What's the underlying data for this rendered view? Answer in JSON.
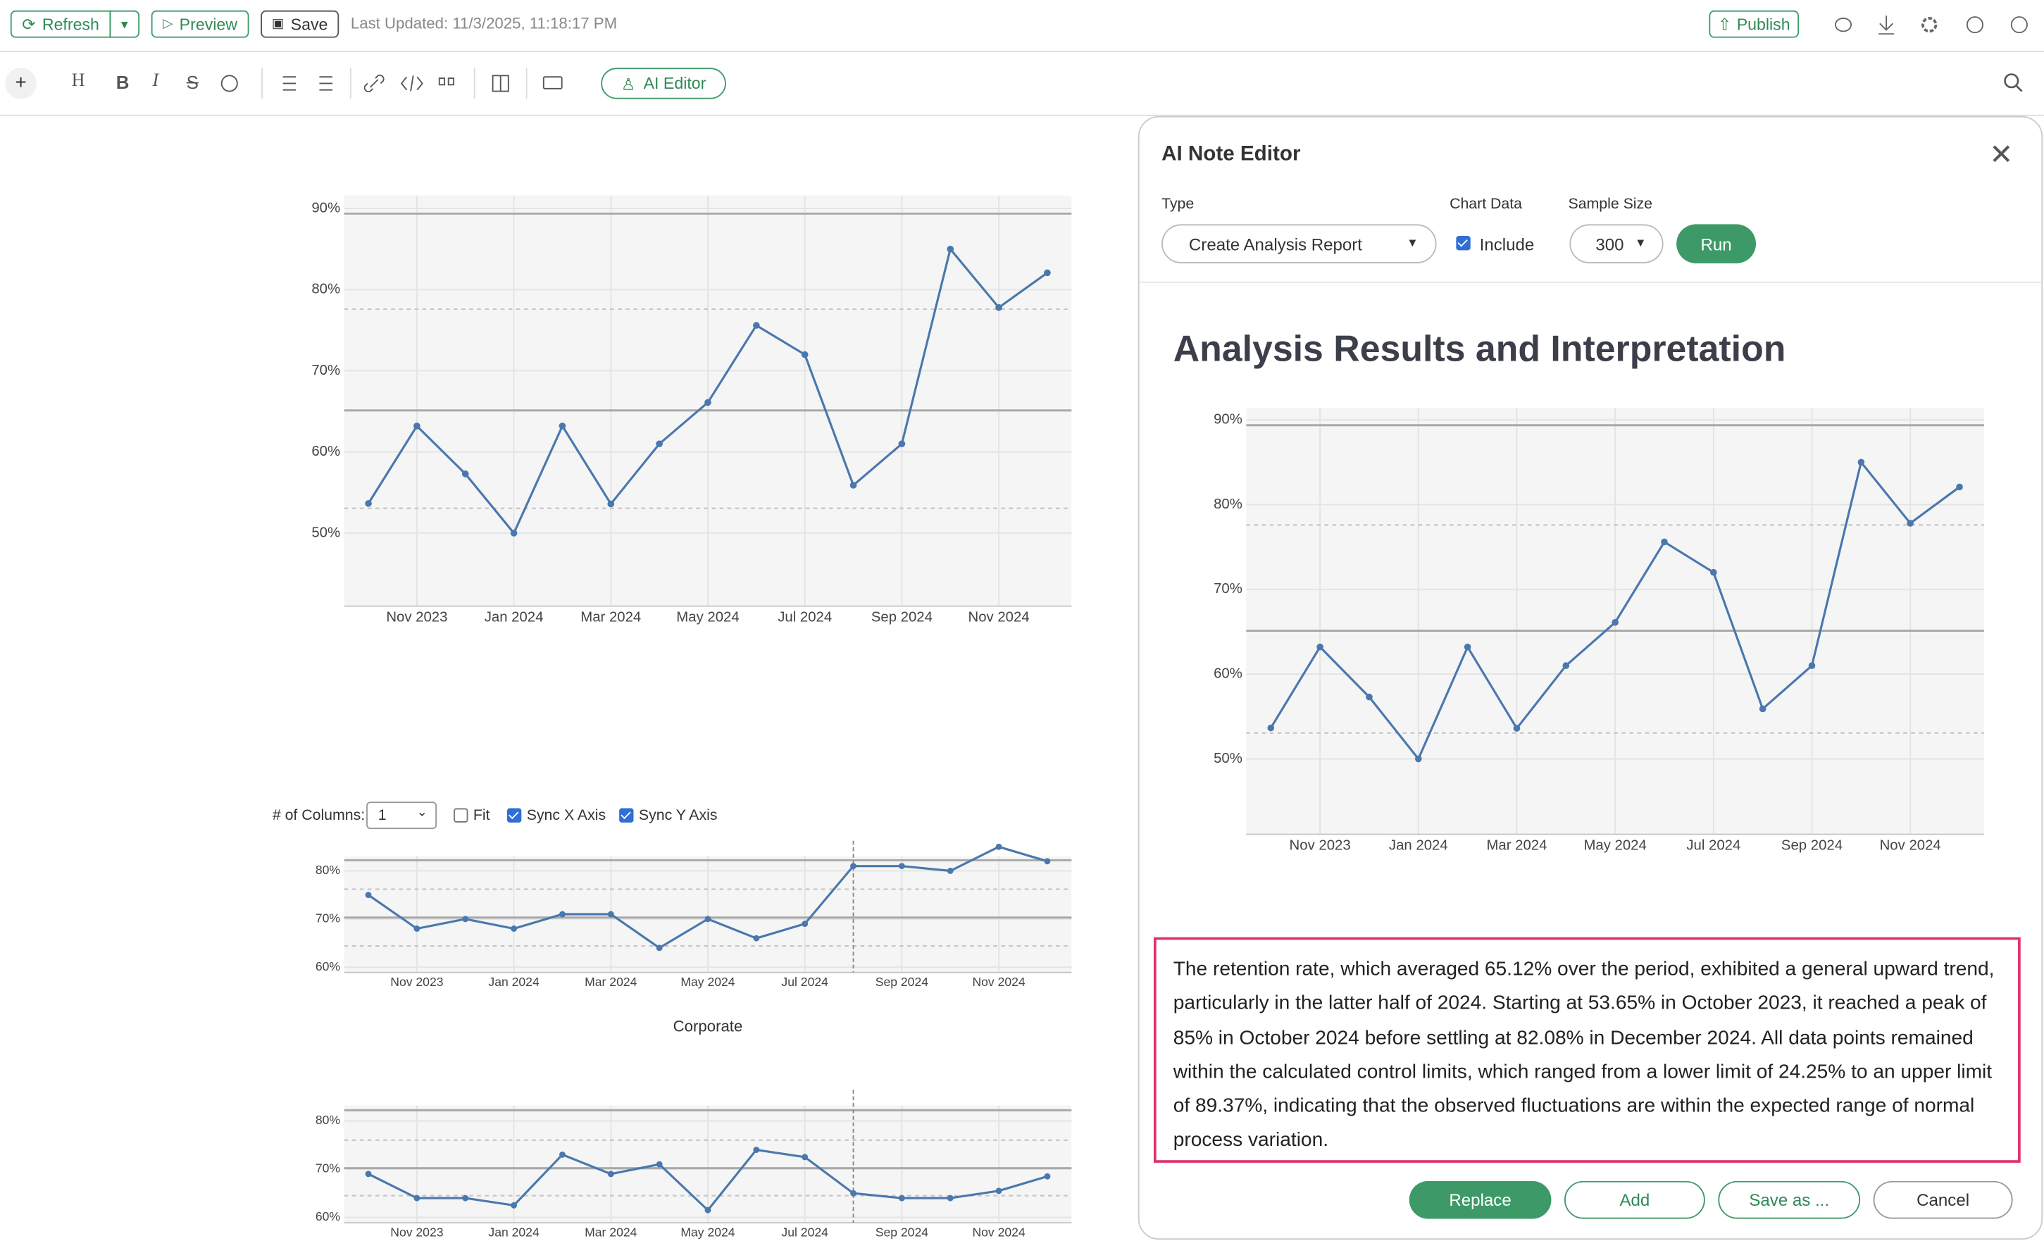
{
  "toolbar": {
    "refresh": "Refresh",
    "preview": "Preview",
    "save": "Save",
    "last_updated": "Last Updated: 11/3/2025, 11:18:17 PM",
    "publish": "Publish",
    "add": "+",
    "heading": "H",
    "bold": "B",
    "italic": "I",
    "strike": "S",
    "ai_editor": "AI Editor"
  },
  "facet_controls": {
    "columns_label": "# of Columns:",
    "columns_value": "1",
    "fit": "Fit",
    "sync_x": "Sync X Axis",
    "sync_y": "Sync Y Axis"
  },
  "chart_data": [
    {
      "type": "line",
      "categories": [
        null,
        "Nov 2023",
        null,
        "Jan 2024",
        null,
        "Mar 2024",
        null,
        "May 2024",
        null,
        "Jul 2024",
        null,
        "Sep 2024",
        null,
        "Nov 2024",
        null
      ],
      "series": [
        {
          "color": "#4a78ad",
          "values": [
            53.65,
            63.2,
            57.3,
            50.0,
            63.2,
            53.6,
            61.0,
            66.1,
            75.6,
            72.0,
            55.9,
            61.0,
            85,
            77.8,
            82.08
          ]
        }
      ],
      "ylim": [
        41,
        91.6
      ],
      "yticks": [
        {
          "value": 50,
          "label": "50%"
        },
        {
          "value": 60,
          "label": "60%"
        },
        {
          "value": 70,
          "label": "70%"
        },
        {
          "value": 80,
          "label": "80%"
        },
        {
          "value": 90,
          "label": "90%"
        }
      ],
      "reference_lines": [
        {
          "value": 89.37,
          "style": "solid"
        },
        {
          "value": 77.6,
          "style": "dashed"
        },
        {
          "value": 65.12,
          "style": "solid"
        },
        {
          "value": 53.05,
          "style": "dashed"
        }
      ],
      "grid": true
    },
    {
      "type": "line",
      "categories": [
        null,
        "Nov 2023",
        null,
        "Jan 2024",
        null,
        "Mar 2024",
        null,
        "May 2024",
        null,
        "Jul 2024",
        null,
        "Sep 2024",
        null,
        "Nov 2024",
        null
      ],
      "series": [
        {
          "color": "#4a78ad",
          "values": [
            75,
            68,
            70,
            68,
            71,
            71,
            64,
            70,
            66,
            69,
            81,
            81,
            80,
            85,
            82
          ]
        }
      ],
      "ylim": [
        58.9,
        83
      ],
      "yticks": [
        {
          "value": 60,
          "label": "60%"
        },
        {
          "value": 70,
          "label": "70%"
        },
        {
          "value": 80,
          "label": "80%"
        }
      ],
      "reference_lines": [
        {
          "value": 82.2,
          "style": "solid"
        },
        {
          "value": 76.2,
          "style": "dashed"
        },
        {
          "value": 70.3,
          "style": "solid"
        },
        {
          "value": 64.4,
          "style": "dashed"
        }
      ],
      "vline": 10,
      "grid": true
    },
    {
      "type": "line",
      "title": "Corporate",
      "categories": [
        null,
        "Nov 2023",
        null,
        "Jan 2024",
        null,
        "Mar 2024",
        null,
        "May 2024",
        null,
        "Jul 2024",
        null,
        "Sep 2024",
        null,
        "Nov 2024",
        null
      ],
      "series": [
        {
          "color": "#4a78ad",
          "values": [
            69,
            64,
            64,
            62.5,
            73,
            69,
            71,
            61.5,
            74,
            72.5,
            65,
            64,
            64,
            65.5,
            68.5
          ]
        }
      ],
      "ylim": [
        58.9,
        83.2
      ],
      "yticks": [
        {
          "value": 60,
          "label": "60%"
        },
        {
          "value": 70,
          "label": "70%"
        },
        {
          "value": 80,
          "label": "80%"
        }
      ],
      "reference_lines": [
        {
          "value": 82.2,
          "style": "solid"
        },
        {
          "value": 76,
          "style": "dashed"
        },
        {
          "value": 70.2,
          "style": "solid"
        },
        {
          "value": 64.5,
          "style": "dashed"
        }
      ],
      "vline": 10,
      "grid": true
    },
    {
      "type": "line",
      "categories": [
        null,
        "Nov 2023",
        null,
        "Jan 2024",
        null,
        "Mar 2024",
        null,
        "May 2024",
        null,
        "Jul 2024",
        null,
        "Sep 2024",
        null,
        "Nov 2024",
        null
      ],
      "series": [
        {
          "color": "#4a78ad",
          "values": [
            53.65,
            63.2,
            57.3,
            50.0,
            63.2,
            53.6,
            61.0,
            66.1,
            75.6,
            72.0,
            55.9,
            61.0,
            85,
            77.8,
            82.08
          ]
        }
      ],
      "ylim": [
        41.1,
        91.4
      ],
      "yticks": [
        {
          "value": 50,
          "label": "50%"
        },
        {
          "value": 60,
          "label": "60%"
        },
        {
          "value": 70,
          "label": "70%"
        },
        {
          "value": 80,
          "label": "80%"
        },
        {
          "value": 90,
          "label": "90%"
        }
      ],
      "reference_lines": [
        {
          "value": 89.37,
          "style": "solid"
        },
        {
          "value": 77.6,
          "style": "dashed"
        },
        {
          "value": 65.12,
          "style": "solid"
        },
        {
          "value": 53.05,
          "style": "dashed"
        }
      ],
      "grid": true
    }
  ],
  "panel": {
    "title": "AI Note Editor",
    "type_label": "Type",
    "type_value": "Create Analysis Report",
    "chart_data_label": "Chart Data",
    "include": "Include",
    "sample_size_label": "Sample Size",
    "sample_size": "300",
    "run": "Run",
    "heading": "Analysis Results and Interpretation",
    "text": "The retention rate, which averaged 65.12% over the period, exhibited a general upward trend, particularly in the latter half of 2024. Starting at 53.65% in October 2023, it reached a peak of 85% in October 2024 before settling at 82.08% in December 2024. All data points remained within the calculated control limits, which ranged from a lower limit of 24.25% to an upper limit of 89.37%, indicating that the observed fluctuations are within the expected range of normal process variation.",
    "buttons": [
      "Replace",
      "Add",
      "Save as ...",
      "Cancel"
    ]
  }
}
